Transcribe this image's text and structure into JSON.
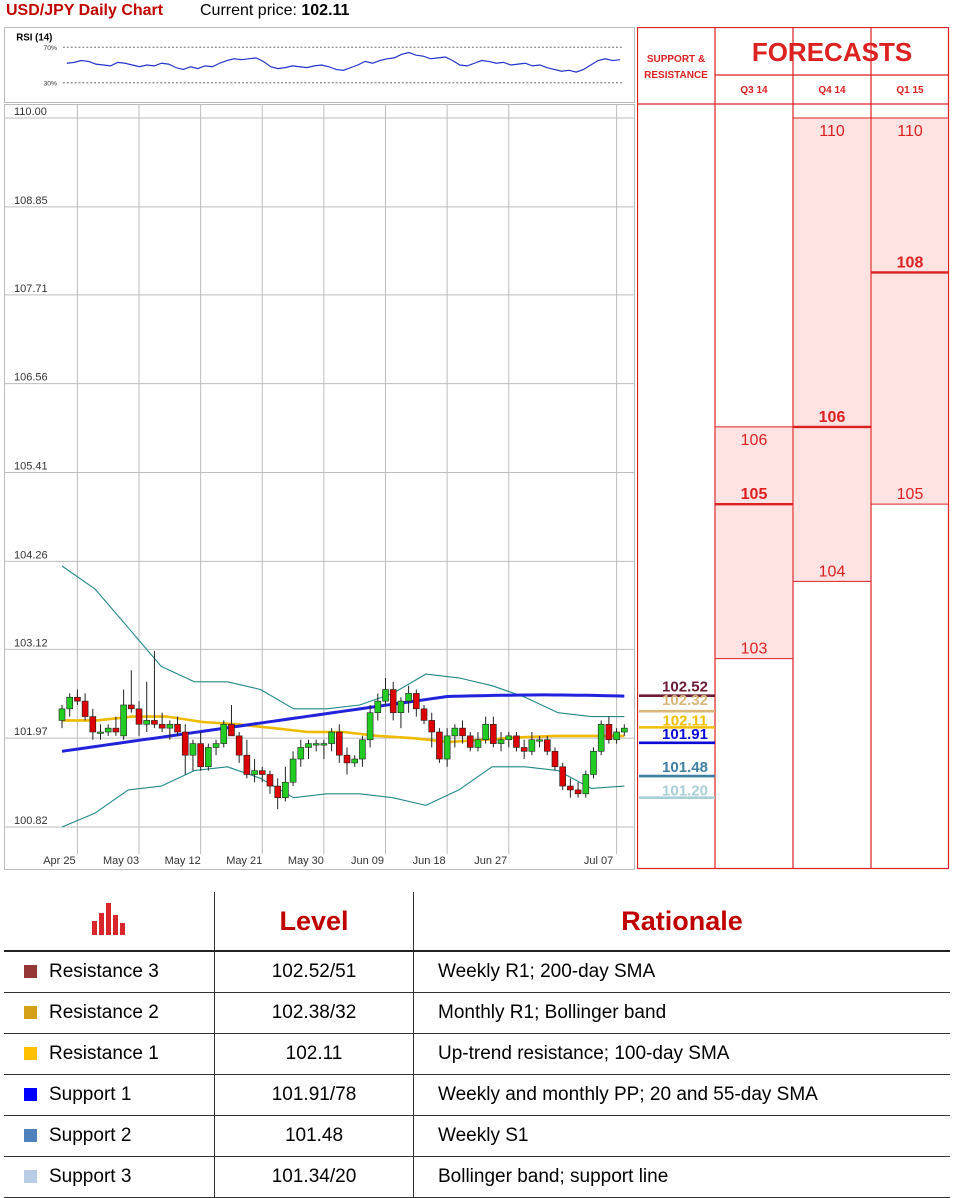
{
  "header": {
    "title": "USD/JPY Daily Chart",
    "price_label": "Current price:",
    "price_value": "102.11"
  },
  "chart_data": [
    {
      "type": "line",
      "title": "RSI (14)",
      "y_ticks": [
        "70%",
        "30%"
      ],
      "ylim": [
        15,
        85
      ],
      "levels": [
        70,
        30
      ],
      "color": "#2233cc",
      "values": [
        52,
        53,
        55,
        54,
        51,
        50,
        49,
        53,
        52,
        50,
        48,
        50,
        49,
        52,
        51,
        47,
        45,
        48,
        46,
        49,
        48,
        52,
        55,
        57,
        56,
        57,
        58,
        54,
        48,
        46,
        47,
        49,
        48,
        47,
        49,
        50,
        48,
        45,
        44,
        47,
        50,
        54,
        52,
        55,
        57,
        58,
        62,
        64,
        61,
        60,
        57,
        58,
        59,
        55,
        50,
        49,
        52,
        55,
        54,
        52,
        53,
        50,
        51,
        52,
        49,
        50,
        47,
        45,
        43,
        44,
        42,
        45,
        50,
        55,
        57,
        55,
        56
      ]
    },
    {
      "type": "candlestick",
      "x_ticks": [
        "Apr 25",
        "May 03",
        "May 12",
        "May 21",
        "May 30",
        "Jun 09",
        "Jun 18",
        "Jun 27",
        "Jul 07"
      ],
      "y_ticks": [
        "110.00",
        "108.85",
        "107.71",
        "106.56",
        "105.41",
        "104.26",
        "103.12",
        "101.97",
        "100.82"
      ],
      "ylim": [
        100.82,
        110.0
      ],
      "grid": true,
      "colors": {
        "up": "#22cc22",
        "down": "#dd0000",
        "sma200": "#2222dd",
        "sma100": "#eebb00",
        "bollinger": "#228888",
        "sma20": "#cccccc"
      },
      "ohlc": [
        [
          102.2,
          102.4,
          102.1,
          102.35
        ],
        [
          102.35,
          102.55,
          102.25,
          102.5
        ],
        [
          102.5,
          102.6,
          102.4,
          102.45
        ],
        [
          102.45,
          102.55,
          102.2,
          102.25
        ],
        [
          102.25,
          102.35,
          101.95,
          102.05
        ],
        [
          102.05,
          102.15,
          101.95,
          102.05
        ],
        [
          102.05,
          102.15,
          102.0,
          102.1
        ],
        [
          102.1,
          102.25,
          102.0,
          102.05
        ],
        [
          102.0,
          102.6,
          101.95,
          102.4
        ],
        [
          102.4,
          102.85,
          102.3,
          102.35
        ],
        [
          102.35,
          102.45,
          102.0,
          102.15
        ],
        [
          102.15,
          102.7,
          102.05,
          102.2
        ],
        [
          102.2,
          103.1,
          102.1,
          102.15
        ],
        [
          102.15,
          102.3,
          102.05,
          102.1
        ],
        [
          102.1,
          102.2,
          101.95,
          102.15
        ],
        [
          102.15,
          102.25,
          102.0,
          102.05
        ],
        [
          102.05,
          102.15,
          101.5,
          101.75
        ],
        [
          101.75,
          101.95,
          101.55,
          101.9
        ],
        [
          101.9,
          102.05,
          101.55,
          101.6
        ],
        [
          101.6,
          101.9,
          101.55,
          101.85
        ],
        [
          101.85,
          101.95,
          101.75,
          101.9
        ],
        [
          101.9,
          102.2,
          101.85,
          102.15
        ],
        [
          102.15,
          102.4,
          102.0,
          102.0
        ],
        [
          102.0,
          102.05,
          101.65,
          101.75
        ],
        [
          101.75,
          101.95,
          101.45,
          101.5
        ],
        [
          101.5,
          101.7,
          101.4,
          101.55
        ],
        [
          101.55,
          101.6,
          101.4,
          101.5
        ],
        [
          101.5,
          101.55,
          101.25,
          101.35
        ],
        [
          101.35,
          101.45,
          101.05,
          101.2
        ],
        [
          101.2,
          101.6,
          101.15,
          101.4
        ],
        [
          101.4,
          101.8,
          101.35,
          101.7
        ],
        [
          101.7,
          101.95,
          101.6,
          101.85
        ],
        [
          101.85,
          101.95,
          101.7,
          101.9
        ],
        [
          101.9,
          101.95,
          101.8,
          101.9
        ],
        [
          101.9,
          101.95,
          101.7,
          101.9
        ],
        [
          101.9,
          102.1,
          101.8,
          102.05
        ],
        [
          102.05,
          102.15,
          101.65,
          101.75
        ],
        [
          101.75,
          101.85,
          101.5,
          101.65
        ],
        [
          101.65,
          101.75,
          101.6,
          101.7
        ],
        [
          101.7,
          102.0,
          101.6,
          101.95
        ],
        [
          101.95,
          102.4,
          101.85,
          102.3
        ],
        [
          102.3,
          102.55,
          102.2,
          102.45
        ],
        [
          102.45,
          102.75,
          102.4,
          102.6
        ],
        [
          102.6,
          102.7,
          102.2,
          102.3
        ],
        [
          102.3,
          102.5,
          102.1,
          102.45
        ],
        [
          102.45,
          102.65,
          102.3,
          102.55
        ],
        [
          102.55,
          102.6,
          102.25,
          102.35
        ],
        [
          102.35,
          102.4,
          102.15,
          102.2
        ],
        [
          102.2,
          102.3,
          101.85,
          102.05
        ],
        [
          102.05,
          102.1,
          101.65,
          101.7
        ],
        [
          101.7,
          102.1,
          101.6,
          102.0
        ],
        [
          102.0,
          102.15,
          101.85,
          102.1
        ],
        [
          102.1,
          102.2,
          101.9,
          102.0
        ],
        [
          102.0,
          102.05,
          101.8,
          101.85
        ],
        [
          101.85,
          102.05,
          101.8,
          101.95
        ],
        [
          101.95,
          102.25,
          101.9,
          102.15
        ],
        [
          102.15,
          102.25,
          101.85,
          101.9
        ],
        [
          101.9,
          102.05,
          101.8,
          101.95
        ],
        [
          101.95,
          102.05,
          101.85,
          102.0
        ],
        [
          102.0,
          102.05,
          101.8,
          101.85
        ],
        [
          101.85,
          101.95,
          101.7,
          101.8
        ],
        [
          101.8,
          102.05,
          101.75,
          101.95
        ],
        [
          101.95,
          102.0,
          101.85,
          101.95
        ],
        [
          101.95,
          102.0,
          101.75,
          101.8
        ],
        [
          101.8,
          101.85,
          101.55,
          101.6
        ],
        [
          101.6,
          101.65,
          101.3,
          101.35
        ],
        [
          101.35,
          101.45,
          101.2,
          101.3
        ],
        [
          101.3,
          101.4,
          101.2,
          101.25
        ],
        [
          101.25,
          101.55,
          101.2,
          101.5
        ],
        [
          101.5,
          101.85,
          101.45,
          101.8
        ],
        [
          101.8,
          102.2,
          101.75,
          102.15
        ],
        [
          102.15,
          102.25,
          101.9,
          101.95
        ],
        [
          101.95,
          102.1,
          101.9,
          102.05
        ],
        [
          102.05,
          102.15,
          102.0,
          102.1
        ]
      ],
      "series": [
        {
          "name": "200-day SMA",
          "from": 0,
          "to": 73,
          "values": [
            101.8,
            102.51
          ]
        },
        {
          "name": "100-day SMA",
          "values": [
            102.2,
            102.2,
            102.25,
            102.25,
            102.18,
            102.15,
            102.1,
            102.05,
            102.05,
            102.0,
            101.97,
            101.92,
            101.95,
            101.98,
            102.0,
            102.0,
            102.0
          ]
        },
        {
          "name": "Bollinger upper",
          "values": [
            104.2,
            103.9,
            103.4,
            102.9,
            102.7,
            102.7,
            102.6,
            102.35,
            102.35,
            102.4,
            102.55,
            102.8,
            102.75,
            102.65,
            102.5,
            102.3,
            102.25,
            102.25
          ]
        },
        {
          "name": "Bollinger lower",
          "values": [
            100.82,
            101.0,
            101.3,
            101.35,
            101.55,
            101.6,
            101.45,
            101.2,
            101.25,
            101.25,
            101.2,
            101.1,
            101.3,
            101.6,
            101.6,
            101.55,
            101.32,
            101.35
          ]
        }
      ],
      "levels": [
        {
          "label": "102.52",
          "value": 102.52,
          "color": "#6b1b33"
        },
        {
          "label": "102.32",
          "value": 102.32,
          "color": "#d9b77a"
        },
        {
          "label": "102.11",
          "value": 102.11,
          "color": "#f0c000"
        },
        {
          "label": "101.91",
          "value": 101.91,
          "color": "#0a0ad8"
        },
        {
          "label": "101.48",
          "value": 101.48,
          "color": "#3f7fa3"
        },
        {
          "label": "101.20",
          "value": 101.2,
          "color": "#a9cfd6"
        }
      ]
    }
  ],
  "forecast": {
    "title": "FORECASTS",
    "sr_label": "SUPPORT & RESISTANCE",
    "columns": [
      {
        "label": "Q3 14",
        "top": 106,
        "middle": 105,
        "bottom": 103
      },
      {
        "label": "Q4 14",
        "top": 110,
        "middle": 106,
        "bottom": 104
      },
      {
        "label": "Q1 15",
        "top": 110,
        "middle": 108,
        "bottom": 105
      }
    ]
  },
  "table": {
    "headers": [
      "Level",
      "Rationale"
    ],
    "rows": [
      {
        "name": "Resistance 3",
        "level": "102.52/51",
        "rationale": "Weekly R1; 200-day SMA",
        "color": "#953735"
      },
      {
        "name": "Resistance 2",
        "level": "102.38/32",
        "rationale": "Monthly R1; Bollinger band",
        "color": "#d4a017"
      },
      {
        "name": "Resistance 1",
        "level": "102.11",
        "rationale": "Up-trend resistance; 100-day SMA",
        "color": "#ffc000"
      },
      {
        "name": "Support 1",
        "level": "101.91/78",
        "rationale": "Weekly and monthly PP; 20 and 55-day SMA",
        "color": "#0000ff"
      },
      {
        "name": "Support 2",
        "level": "101.48",
        "rationale": "Weekly S1",
        "color": "#4f81bd"
      },
      {
        "name": "Support 3",
        "level": "101.34/20",
        "rationale": "Bollinger band; support line",
        "color": "#b8cce4"
      }
    ]
  }
}
